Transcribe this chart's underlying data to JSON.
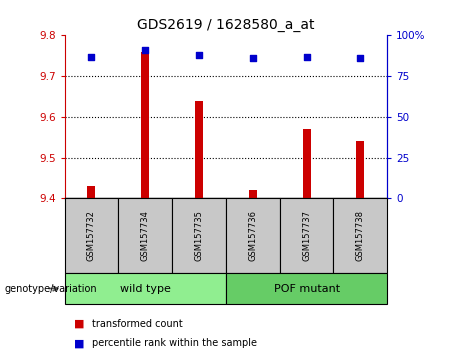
{
  "title": "GDS2619 / 1628580_a_at",
  "samples": [
    "GSM157732",
    "GSM157734",
    "GSM157735",
    "GSM157736",
    "GSM157737",
    "GSM157738"
  ],
  "bar_values": [
    9.43,
    9.76,
    9.64,
    9.42,
    9.57,
    9.54
  ],
  "bar_color": "#cc0000",
  "dot_values": [
    87,
    91,
    88,
    86,
    87,
    86
  ],
  "dot_color": "#0000cc",
  "ylim_left": [
    9.4,
    9.8
  ],
  "ylim_right": [
    0,
    100
  ],
  "yticks_left": [
    9.4,
    9.5,
    9.6,
    9.7,
    9.8
  ],
  "yticks_right": [
    0,
    25,
    50,
    75,
    100
  ],
  "ytick_labels_right": [
    "0",
    "25",
    "50",
    "75",
    "100%"
  ],
  "groups": [
    {
      "label": "wild type",
      "indices": [
        0,
        1,
        2
      ],
      "color": "#90ee90"
    },
    {
      "label": "POF mutant",
      "indices": [
        3,
        4,
        5
      ],
      "color": "#66cc66"
    }
  ],
  "group_label_prefix": "genotype/variation",
  "legend_items": [
    {
      "label": "transformed count",
      "color": "#cc0000"
    },
    {
      "label": "percentile rank within the sample",
      "color": "#0000cc"
    }
  ],
  "left_tick_color": "#cc0000",
  "right_tick_color": "#0000cc",
  "bar_bottom": 9.4,
  "grid_yticks": [
    9.5,
    9.6,
    9.7
  ],
  "sample_label_area_color": "#c8c8c8",
  "fig_width": 4.61,
  "fig_height": 3.54,
  "dpi": 100
}
